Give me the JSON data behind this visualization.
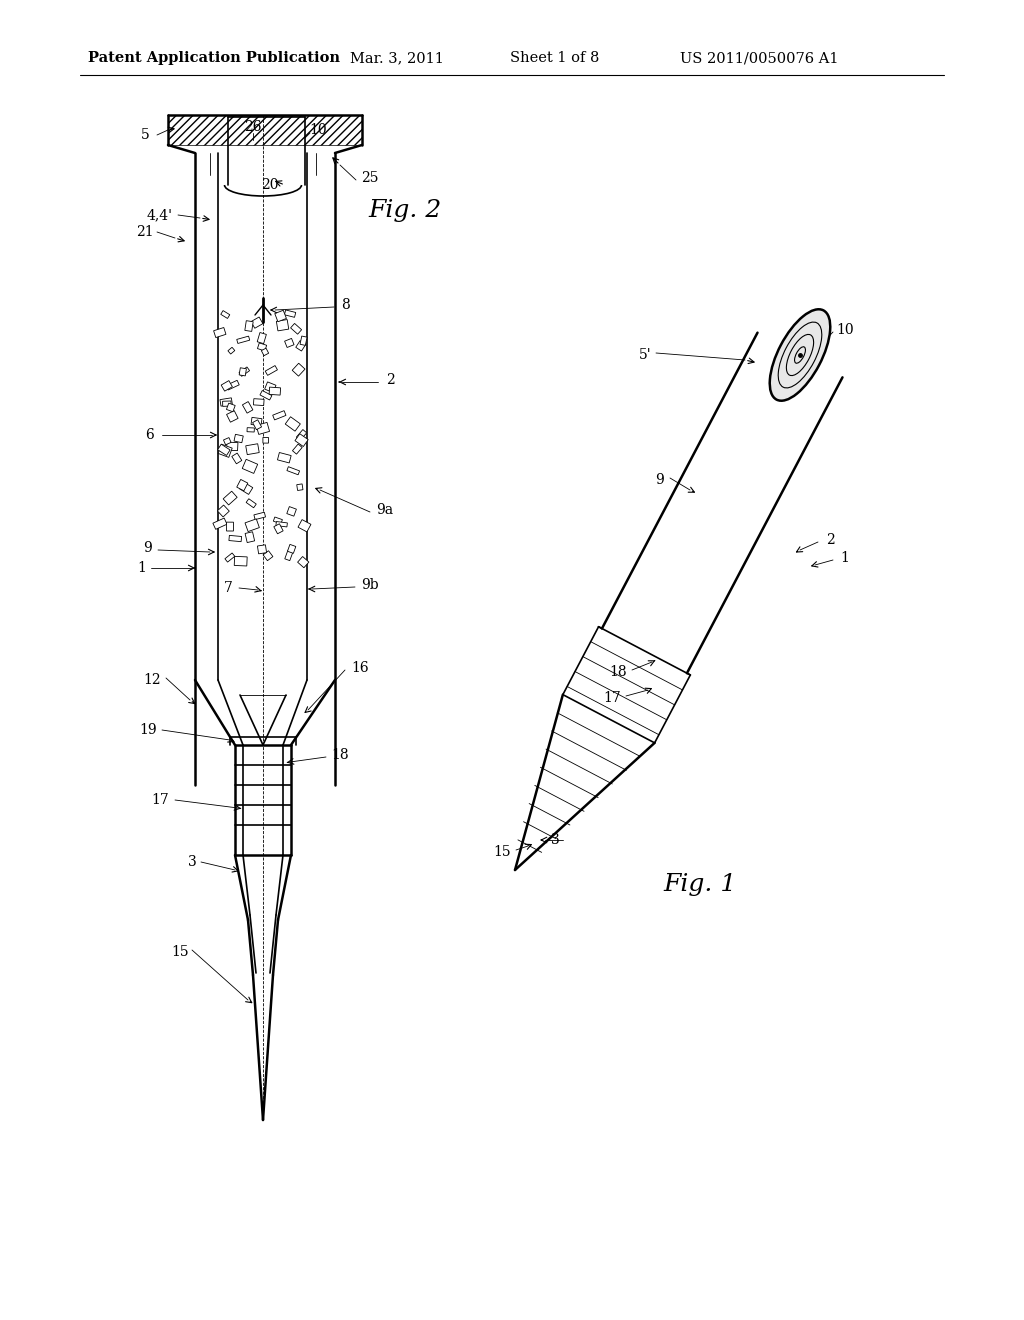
{
  "background_color": "#ffffff",
  "header_text": "Patent Application Publication",
  "header_date": "Mar. 3, 2011",
  "header_sheet": "Sheet 1 of 8",
  "header_patent": "US 2011/0050076 A1",
  "line_color": "#000000",
  "line_width": 1.2,
  "thin_line": 0.6,
  "thick_line": 1.8,
  "label_fontsize": 10,
  "header_fontsize": 10.5,
  "fig_label_fontsize": 18
}
